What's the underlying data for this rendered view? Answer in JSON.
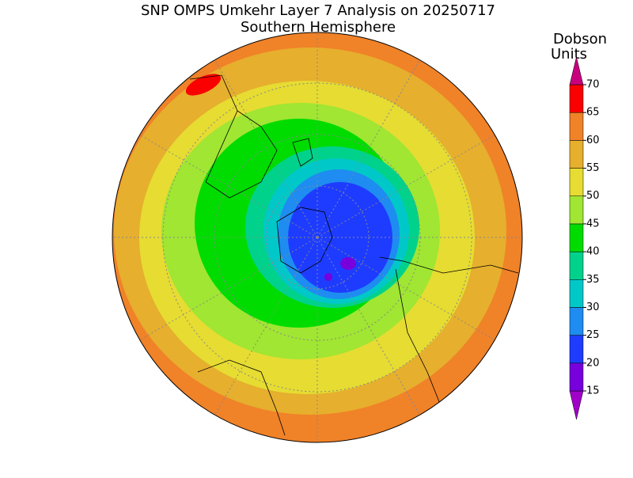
{
  "title": "SNP OMPS Umkehr Layer 7 Analysis on 20250717",
  "subtitle": "Southern Hemisphere",
  "colorbar": {
    "label_lines": [
      "Dobson",
      "Units"
    ],
    "ticks": [
      15,
      20,
      25,
      30,
      35,
      40,
      45,
      50,
      55,
      60,
      65,
      70
    ],
    "colors": [
      "#a000c8",
      "#7800dc",
      "#1e3cff",
      "#1e8cf0",
      "#00c8c8",
      "#00d28c",
      "#00dc00",
      "#a0e632",
      "#e6dc32",
      "#e6af2d",
      "#f08228",
      "#fa0000",
      "#c8007d"
    ]
  }
}
